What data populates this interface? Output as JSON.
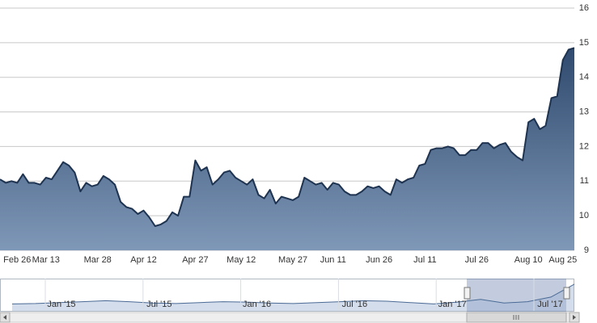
{
  "chart_data": {
    "type": "area",
    "categories": [
      null,
      null,
      null,
      "Feb 26",
      null,
      null,
      null,
      null,
      "Mar 13",
      null,
      null,
      null,
      null,
      null,
      null,
      null,
      null,
      "Mar 28",
      null,
      null,
      null,
      null,
      null,
      null,
      null,
      "Apr 12",
      null,
      null,
      null,
      null,
      null,
      null,
      null,
      null,
      "Apr 27",
      null,
      null,
      null,
      null,
      null,
      null,
      null,
      "May 12",
      null,
      null,
      null,
      null,
      null,
      null,
      null,
      null,
      "May 27",
      null,
      null,
      null,
      null,
      null,
      null,
      "Jun 11",
      null,
      null,
      null,
      null,
      null,
      null,
      null,
      "Jun 26",
      null,
      null,
      null,
      null,
      null,
      null,
      null,
      "Jul 11",
      null,
      null,
      null,
      null,
      null,
      null,
      null,
      null,
      "Jul 26",
      null,
      null,
      null,
      null,
      null,
      null,
      null,
      null,
      "Aug 10",
      null,
      null,
      null,
      null,
      null,
      "Aug 25",
      null,
      null
    ],
    "values": [
      11.05,
      10.95,
      11.0,
      10.95,
      11.2,
      10.95,
      10.95,
      10.9,
      11.1,
      11.05,
      11.3,
      11.55,
      11.45,
      11.25,
      10.7,
      10.95,
      10.85,
      10.9,
      11.15,
      11.05,
      10.9,
      10.4,
      10.25,
      10.2,
      10.05,
      10.15,
      9.95,
      9.7,
      9.75,
      9.85,
      10.1,
      10.0,
      10.55,
      10.55,
      11.6,
      11.3,
      11.4,
      10.9,
      11.05,
      11.25,
      11.3,
      11.1,
      11.0,
      10.9,
      11.05,
      10.6,
      10.5,
      10.75,
      10.35,
      10.55,
      10.5,
      10.45,
      10.55,
      11.1,
      11.0,
      10.9,
      10.95,
      10.75,
      10.95,
      10.9,
      10.7,
      10.6,
      10.6,
      10.7,
      10.85,
      10.8,
      10.85,
      10.7,
      10.6,
      11.05,
      10.95,
      11.05,
      11.1,
      11.45,
      11.5,
      11.9,
      11.95,
      11.95,
      12.0,
      11.95,
      11.75,
      11.75,
      11.9,
      11.9,
      12.1,
      12.1,
      11.95,
      12.05,
      12.1,
      11.85,
      11.7,
      11.6,
      12.7,
      12.8,
      12.5,
      12.6,
      13.4,
      13.45,
      14.5,
      14.8,
      14.85
    ],
    "color": "#1e3350",
    "ylim": [
      9,
      16
    ],
    "yticks": [
      9,
      10,
      11,
      12,
      13,
      14,
      15,
      16
    ],
    "grid": true,
    "navigator": {
      "labels": [
        "Jan '15",
        "Jul '15",
        "Jan '16",
        "Jul '16",
        "Jan '17",
        "Jul '17"
      ],
      "values": [
        10.5,
        10.6,
        10.8,
        11.0,
        11.2,
        11.0,
        10.7,
        10.6,
        10.8,
        11.0,
        10.9,
        10.7,
        10.6,
        10.8,
        11.0,
        11.2,
        11.1,
        10.8,
        10.5,
        10.9,
        11.5,
        10.7,
        11.0,
        12.0,
        14.8
      ]
    }
  }
}
